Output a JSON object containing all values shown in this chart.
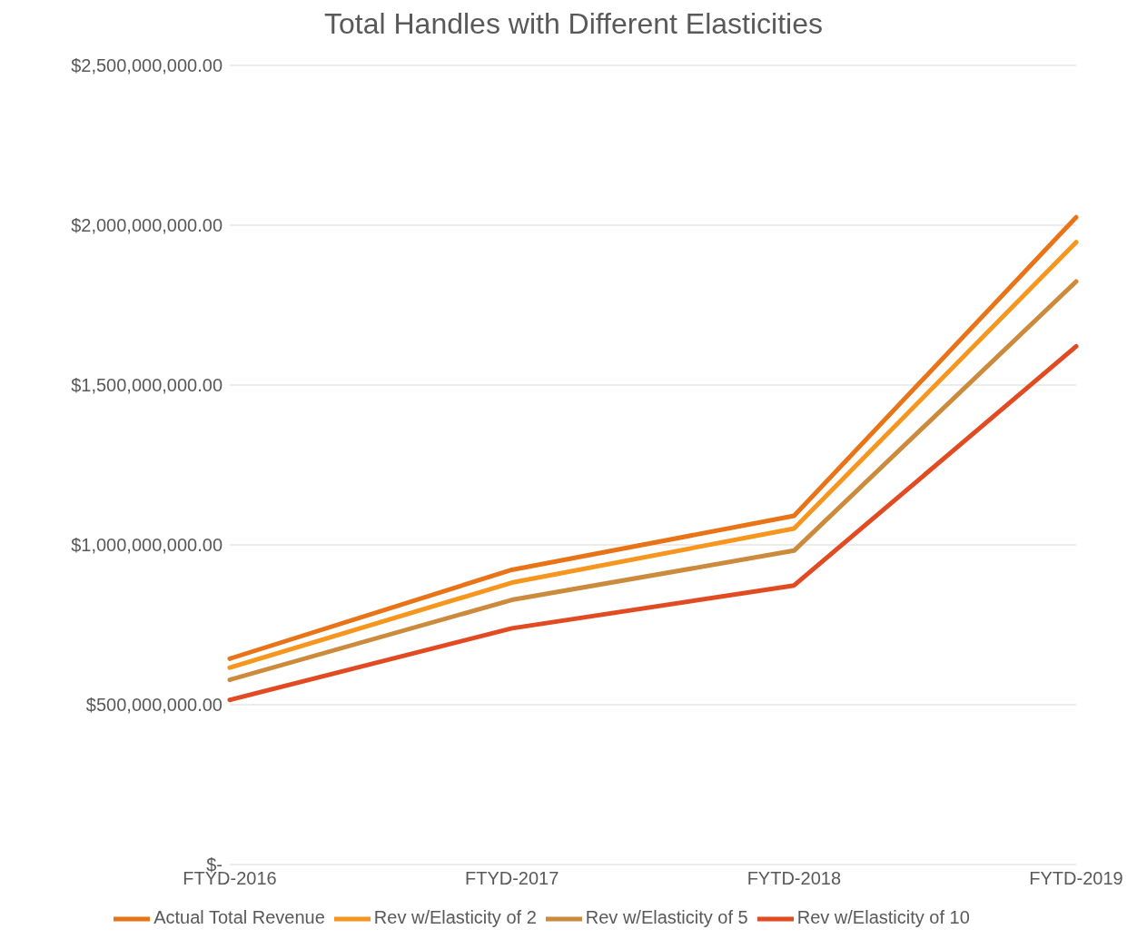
{
  "chart_data": {
    "type": "line",
    "title": "Total Handles with Different Elasticities",
    "categories": [
      "FTYD-2016",
      "FTYD-2017",
      "FYTD-2018",
      "FYTD-2019"
    ],
    "series": [
      {
        "name": "Actual Total Revenue",
        "color": "#e97418",
        "values": [
          644000000,
          922000000,
          1091000000,
          2025000000
        ]
      },
      {
        "name": "Rev w/Elasticity of 2",
        "color": "#f7961e",
        "values": [
          616000000,
          882000000,
          1051000000,
          1947000000
        ]
      },
      {
        "name": "Rev w/Elasticity of 5",
        "color": "#cc8a3c",
        "values": [
          578000000,
          828000000,
          982000000,
          1824000000
        ]
      },
      {
        "name": "Rev w/Elasticity of 10",
        "color": "#e24a22",
        "values": [
          515000000,
          739000000,
          873000000,
          1621000000
        ]
      }
    ],
    "ylim": [
      0,
      2500000000
    ],
    "yticks": [
      {
        "value": 0,
        "label": "$-"
      },
      {
        "value": 500000000,
        "label": "$500,000,000.00"
      },
      {
        "value": 1000000000,
        "label": "$1,000,000,000.00"
      },
      {
        "value": 1500000000,
        "label": "$1,500,000,000.00"
      },
      {
        "value": 2000000000,
        "label": "$2,000,000,000.00"
      },
      {
        "value": 2500000000,
        "label": "$2,500,000,000.00"
      }
    ],
    "grid": "y",
    "legend": "bottom",
    "marker": "none",
    "line_style": "solid"
  }
}
